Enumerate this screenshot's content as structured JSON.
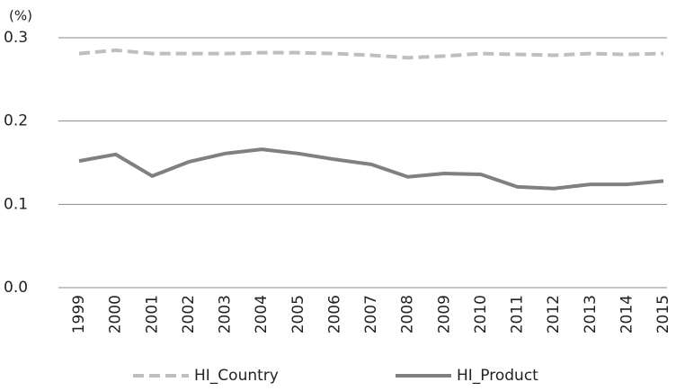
{
  "chart_data": {
    "type": "line",
    "y_label": "(%)",
    "categories": [
      "1999",
      "2000",
      "2001",
      "2002",
      "2003",
      "2004",
      "2005",
      "2006",
      "2007",
      "2008",
      "2009",
      "2010",
      "2011",
      "2012",
      "2013",
      "2014",
      "2015"
    ],
    "series": [
      {
        "name": "HI_Country",
        "color": "#bfbfbf",
        "dashed": true,
        "values": [
          0.281,
          0.285,
          0.281,
          0.281,
          0.281,
          0.282,
          0.282,
          0.281,
          0.279,
          0.276,
          0.278,
          0.281,
          0.28,
          0.279,
          0.281,
          0.28,
          0.281
        ]
      },
      {
        "name": "HI_Product",
        "color": "#808080",
        "dashed": false,
        "values": [
          0.152,
          0.16,
          0.134,
          0.151,
          0.161,
          0.166,
          0.161,
          0.154,
          0.148,
          0.133,
          0.137,
          0.136,
          0.121,
          0.119,
          0.124,
          0.124,
          0.128
        ]
      }
    ],
    "ylim": [
      0,
      0.3
    ],
    "yticks": [
      {
        "value": 0,
        "label": "0.0"
      },
      0.1,
      0.2,
      0.3
    ],
    "grid": true,
    "legend": "bottom"
  }
}
